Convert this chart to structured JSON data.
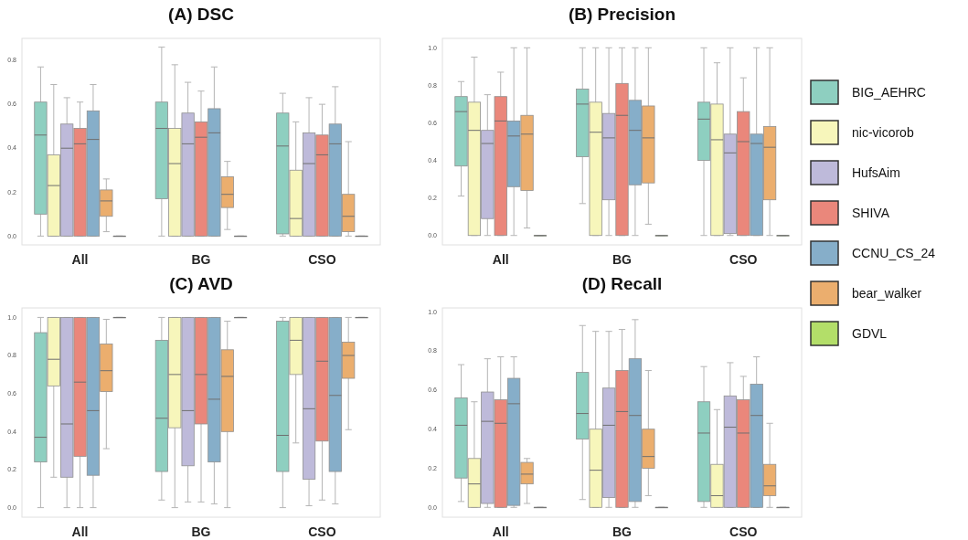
{
  "chart_data": [
    {
      "type": "box",
      "title": "(A) DSC",
      "categories": [
        "All",
        "BG",
        "CSO"
      ],
      "ylim": [
        -0.04,
        0.9
      ],
      "yticks": [
        {
          "value": 0,
          "label": "0.0"
        },
        {
          "value": 0.2,
          "label": "0.2"
        },
        {
          "value": 0.4,
          "label": "0.4"
        },
        {
          "value": 0.6,
          "label": "0.6"
        },
        {
          "value": 0.8,
          "label": "0.8"
        }
      ],
      "grid": false,
      "legend": "right",
      "series": [
        {
          "name": "BIG_AEHRC",
          "color": "#8ecfc0",
          "boxes": [
            {
              "low": 0,
              "q1": 0.1,
              "median": 0.46,
              "q3": 0.61,
              "high": 0.77
            },
            {
              "low": 0,
              "q1": 0.17,
              "median": 0.49,
              "q3": 0.61,
              "high": 0.86
            },
            {
              "low": 0,
              "q1": 0.01,
              "median": 0.41,
              "q3": 0.56,
              "high": 0.65
            }
          ]
        },
        {
          "name": "nic-vicorob",
          "color": "#f7f6bb",
          "boxes": [
            {
              "low": 0,
              "q1": 0,
              "median": 0.23,
              "q3": 0.37,
              "high": 0.69
            },
            {
              "low": 0,
              "q1": 0,
              "median": 0.33,
              "q3": 0.49,
              "high": 0.78
            },
            {
              "low": 0,
              "q1": 0,
              "median": 0.08,
              "q3": 0.3,
              "high": 0.52
            }
          ]
        },
        {
          "name": "HufsAim",
          "color": "#bebada",
          "boxes": [
            {
              "low": 0,
              "q1": 0,
              "median": 0.4,
              "q3": 0.51,
              "high": 0.63
            },
            {
              "low": 0,
              "q1": 0,
              "median": 0.42,
              "q3": 0.56,
              "high": 0.7
            },
            {
              "low": 0,
              "q1": 0,
              "median": 0.33,
              "q3": 0.47,
              "high": 0.63
            }
          ]
        },
        {
          "name": "SHIVA",
          "color": "#ea877b",
          "boxes": [
            {
              "low": 0,
              "q1": 0,
              "median": 0.42,
              "q3": 0.49,
              "high": 0.61
            },
            {
              "low": 0,
              "q1": 0,
              "median": 0.45,
              "q3": 0.52,
              "high": 0.66
            },
            {
              "low": 0,
              "q1": 0,
              "median": 0.37,
              "q3": 0.46,
              "high": 0.6
            }
          ]
        },
        {
          "name": "CCNU_CS_24",
          "color": "#86aec9",
          "boxes": [
            {
              "low": 0,
              "q1": 0,
              "median": 0.44,
              "q3": 0.57,
              "high": 0.69
            },
            {
              "low": 0,
              "q1": 0,
              "median": 0.47,
              "q3": 0.58,
              "high": 0.77
            },
            {
              "low": 0,
              "q1": 0,
              "median": 0.42,
              "q3": 0.51,
              "high": 0.68
            }
          ]
        },
        {
          "name": "bear_walker",
          "color": "#ebae6e",
          "boxes": [
            {
              "low": 0.02,
              "q1": 0.09,
              "median": 0.16,
              "q3": 0.21,
              "high": 0.26
            },
            {
              "low": 0.03,
              "q1": 0.13,
              "median": 0.19,
              "q3": 0.27,
              "high": 0.34
            },
            {
              "low": 0,
              "q1": 0.02,
              "median": 0.09,
              "q3": 0.19,
              "high": 0.43
            }
          ]
        },
        {
          "name": "GDVL",
          "color": "#b3de69",
          "boxes": [
            {
              "low": 0,
              "q1": 0,
              "median": 0,
              "q3": 0,
              "high": 0
            },
            {
              "low": 0,
              "q1": 0,
              "median": 0,
              "q3": 0,
              "high": 0
            },
            {
              "low": 0,
              "q1": 0,
              "median": 0,
              "q3": 0,
              "high": 0
            }
          ]
        }
      ]
    },
    {
      "type": "box",
      "title": "(B) Precision",
      "categories": [
        "All",
        "BG",
        "CSO"
      ],
      "ylim": [
        -0.05,
        1.05
      ],
      "yticks": [
        {
          "value": 0,
          "label": "0.0"
        },
        {
          "value": 0.2,
          "label": "0.2"
        },
        {
          "value": 0.4,
          "label": "0.4"
        },
        {
          "value": 0.6,
          "label": "0.6"
        },
        {
          "value": 0.8,
          "label": "0.8"
        },
        {
          "value": 1,
          "label": "1.0"
        }
      ],
      "grid": false,
      "series": [
        {
          "color": "#8ecfc0",
          "boxes": [
            {
              "low": 0.21,
              "q1": 0.37,
              "median": 0.66,
              "q3": 0.74,
              "high": 0.82
            },
            {
              "low": 0.17,
              "q1": 0.42,
              "median": 0.7,
              "q3": 0.78,
              "high": 1
            },
            {
              "low": 0,
              "q1": 0.4,
              "median": 0.62,
              "q3": 0.71,
              "high": 1
            }
          ]
        },
        {
          "color": "#f7f6bb",
          "boxes": [
            {
              "low": 0,
              "q1": 0,
              "median": 0.56,
              "q3": 0.71,
              "high": 0.95
            },
            {
              "low": 0,
              "q1": 0,
              "median": 0.55,
              "q3": 0.71,
              "high": 1
            },
            {
              "low": 0,
              "q1": 0,
              "median": 0.51,
              "q3": 0.7,
              "high": 0.92
            }
          ]
        },
        {
          "color": "#bebada",
          "boxes": [
            {
              "low": 0,
              "q1": 0.09,
              "median": 0.49,
              "q3": 0.56,
              "high": 0.75
            },
            {
              "low": 0,
              "q1": 0.19,
              "median": 0.52,
              "q3": 0.65,
              "high": 1
            },
            {
              "low": 0,
              "q1": 0.01,
              "median": 0.44,
              "q3": 0.54,
              "high": 1
            }
          ]
        },
        {
          "color": "#ea877b",
          "boxes": [
            {
              "low": 0,
              "q1": 0,
              "median": 0.61,
              "q3": 0.74,
              "high": 0.87
            },
            {
              "low": 0,
              "q1": 0,
              "median": 0.64,
              "q3": 0.81,
              "high": 1
            },
            {
              "low": 0,
              "q1": 0,
              "median": 0.5,
              "q3": 0.66,
              "high": 0.84
            }
          ]
        },
        {
          "color": "#86aec9",
          "boxes": [
            {
              "low": 0,
              "q1": 0.26,
              "median": 0.53,
              "q3": 0.61,
              "high": 1
            },
            {
              "low": 0,
              "q1": 0.27,
              "median": 0.56,
              "q3": 0.72,
              "high": 1
            },
            {
              "low": 0,
              "q1": 0,
              "median": 0.49,
              "q3": 0.54,
              "high": 1
            }
          ]
        },
        {
          "color": "#ebae6e",
          "boxes": [
            {
              "low": 0.04,
              "q1": 0.24,
              "median": 0.54,
              "q3": 0.64,
              "high": 1
            },
            {
              "low": 0.06,
              "q1": 0.28,
              "median": 0.52,
              "q3": 0.69,
              "high": 1
            },
            {
              "low": 0,
              "q1": 0.19,
              "median": 0.47,
              "q3": 0.58,
              "high": 1
            }
          ]
        },
        {
          "color": "#b3de69",
          "boxes": [
            {
              "low": 0,
              "q1": 0,
              "median": 0,
              "q3": 0,
              "high": 0
            },
            {
              "low": 0,
              "q1": 0,
              "median": 0,
              "q3": 0,
              "high": 0
            },
            {
              "low": 0,
              "q1": 0,
              "median": 0,
              "q3": 0,
              "high": 0
            }
          ]
        }
      ]
    },
    {
      "type": "box",
      "title": "(C) AVD",
      "categories": [
        "All",
        "BG",
        "CSO"
      ],
      "ylim": [
        -0.05,
        1.05
      ],
      "yticks": [
        {
          "value": 0,
          "label": "0.0"
        },
        {
          "value": 0.2,
          "label": "0.2"
        },
        {
          "value": 0.4,
          "label": "0.4"
        },
        {
          "value": 0.6,
          "label": "0.6"
        },
        {
          "value": 0.8,
          "label": "0.8"
        },
        {
          "value": 1,
          "label": "1.0"
        }
      ],
      "grid": false,
      "series": [
        {
          "color": "#8ecfc0",
          "boxes": [
            {
              "low": 0,
              "q1": 0.24,
              "median": 0.37,
              "q3": 0.92,
              "high": 1
            },
            {
              "low": 0.04,
              "q1": 0.19,
              "median": 0.47,
              "q3": 0.88,
              "high": 1
            },
            {
              "low": 0,
              "q1": 0.19,
              "median": 0.38,
              "q3": 0.98,
              "high": 1
            }
          ]
        },
        {
          "color": "#f7f6bb",
          "boxes": [
            {
              "low": 0.16,
              "q1": 0.64,
              "median": 0.78,
              "q3": 1,
              "high": 1
            },
            {
              "low": 0,
              "q1": 0.42,
              "median": 0.7,
              "q3": 1,
              "high": 1
            },
            {
              "low": 0.34,
              "q1": 0.7,
              "median": 0.88,
              "q3": 1,
              "high": 1
            }
          ]
        },
        {
          "color": "#bebada",
          "boxes": [
            {
              "low": 0,
              "q1": 0.16,
              "median": 0.44,
              "q3": 1,
              "high": 1
            },
            {
              "low": 0.03,
              "q1": 0.22,
              "median": 0.51,
              "q3": 1,
              "high": 1
            },
            {
              "low": 0.01,
              "q1": 0.15,
              "median": 0.52,
              "q3": 1,
              "high": 1
            }
          ]
        },
        {
          "color": "#ea877b",
          "boxes": [
            {
              "low": 0,
              "q1": 0.27,
              "median": 0.66,
              "q3": 1,
              "high": 1
            },
            {
              "low": 0.03,
              "q1": 0.44,
              "median": 0.7,
              "q3": 1,
              "high": 1
            },
            {
              "low": 0.04,
              "q1": 0.35,
              "median": 0.77,
              "q3": 1,
              "high": 1
            }
          ]
        },
        {
          "color": "#86aec9",
          "boxes": [
            {
              "low": 0,
              "q1": 0.17,
              "median": 0.51,
              "q3": 1,
              "high": 1
            },
            {
              "low": 0.02,
              "q1": 0.24,
              "median": 0.57,
              "q3": 1,
              "high": 1
            },
            {
              "low": 0.02,
              "q1": 0.19,
              "median": 0.59,
              "q3": 1,
              "high": 1
            }
          ]
        },
        {
          "color": "#ebae6e",
          "boxes": [
            {
              "low": 0.31,
              "q1": 0.61,
              "median": 0.72,
              "q3": 0.86,
              "high": 0.99
            },
            {
              "low": 0,
              "q1": 0.4,
              "median": 0.69,
              "q3": 0.83,
              "high": 0.98
            },
            {
              "low": 0.41,
              "q1": 0.68,
              "median": 0.8,
              "q3": 0.87,
              "high": 1
            }
          ]
        },
        {
          "color": "#b3de69",
          "boxes": [
            {
              "low": 1,
              "q1": 1,
              "median": 1,
              "q3": 1,
              "high": 1
            },
            {
              "low": 1,
              "q1": 1,
              "median": 1,
              "q3": 1,
              "high": 1
            },
            {
              "low": 1,
              "q1": 1,
              "median": 1,
              "q3": 1,
              "high": 1
            }
          ]
        }
      ]
    },
    {
      "type": "box",
      "title": "(D) Recall",
      "categories": [
        "All",
        "BG",
        "CSO"
      ],
      "ylim": [
        -0.05,
        1.02
      ],
      "yticks": [
        {
          "value": 0,
          "label": "0.0"
        },
        {
          "value": 0.2,
          "label": "0.2"
        },
        {
          "value": 0.4,
          "label": "0.4"
        },
        {
          "value": 0.6,
          "label": "0.6"
        },
        {
          "value": 0.8,
          "label": "0.8"
        },
        {
          "value": 1,
          "label": "1.0"
        }
      ],
      "grid": false,
      "series": [
        {
          "color": "#8ecfc0",
          "boxes": [
            {
              "low": 0.03,
              "q1": 0.15,
              "median": 0.42,
              "q3": 0.56,
              "high": 0.73
            },
            {
              "low": 0.04,
              "q1": 0.35,
              "median": 0.48,
              "q3": 0.69,
              "high": 0.93
            },
            {
              "low": 0,
              "q1": 0.03,
              "median": 0.38,
              "q3": 0.54,
              "high": 0.72
            }
          ]
        },
        {
          "color": "#f7f6bb",
          "boxes": [
            {
              "low": 0,
              "q1": 0,
              "median": 0.12,
              "q3": 0.25,
              "high": 0.54
            },
            {
              "low": 0,
              "q1": 0,
              "median": 0.19,
              "q3": 0.4,
              "high": 0.9
            },
            {
              "low": 0,
              "q1": 0,
              "median": 0.06,
              "q3": 0.22,
              "high": 0.5
            }
          ]
        },
        {
          "color": "#bebada",
          "boxes": [
            {
              "low": 0,
              "q1": 0.02,
              "median": 0.44,
              "q3": 0.59,
              "high": 0.76
            },
            {
              "low": 0,
              "q1": 0.05,
              "median": 0.42,
              "q3": 0.61,
              "high": 0.9
            },
            {
              "low": 0,
              "q1": 0,
              "median": 0.41,
              "q3": 0.57,
              "high": 0.74
            }
          ]
        },
        {
          "color": "#ea877b",
          "boxes": [
            {
              "low": 0,
              "q1": 0,
              "median": 0.43,
              "q3": 0.55,
              "high": 0.77
            },
            {
              "low": 0,
              "q1": 0,
              "median": 0.49,
              "q3": 0.7,
              "high": 0.91
            },
            {
              "low": 0,
              "q1": 0,
              "median": 0.38,
              "q3": 0.55,
              "high": 0.67
            }
          ]
        },
        {
          "color": "#86aec9",
          "boxes": [
            {
              "low": 0,
              "q1": 0.01,
              "median": 0.53,
              "q3": 0.66,
              "high": 0.77
            },
            {
              "low": 0,
              "q1": 0.03,
              "median": 0.47,
              "q3": 0.76,
              "high": 0.96
            },
            {
              "low": 0,
              "q1": 0,
              "median": 0.47,
              "q3": 0.63,
              "high": 0.77
            }
          ]
        },
        {
          "color": "#ebae6e",
          "boxes": [
            {
              "low": 0.02,
              "q1": 0.12,
              "median": 0.17,
              "q3": 0.23,
              "high": 0.25
            },
            {
              "low": 0.06,
              "q1": 0.2,
              "median": 0.26,
              "q3": 0.4,
              "high": 0.7
            },
            {
              "low": 0,
              "q1": 0.06,
              "median": 0.11,
              "q3": 0.22,
              "high": 0.43
            }
          ]
        },
        {
          "color": "#b3de69",
          "boxes": [
            {
              "low": 0,
              "q1": 0,
              "median": 0,
              "q3": 0,
              "high": 0
            },
            {
              "low": 0,
              "q1": 0,
              "median": 0,
              "q3": 0,
              "high": 0
            },
            {
              "low": 0,
              "q1": 0,
              "median": 0,
              "q3": 0,
              "high": 0
            }
          ]
        }
      ]
    }
  ]
}
